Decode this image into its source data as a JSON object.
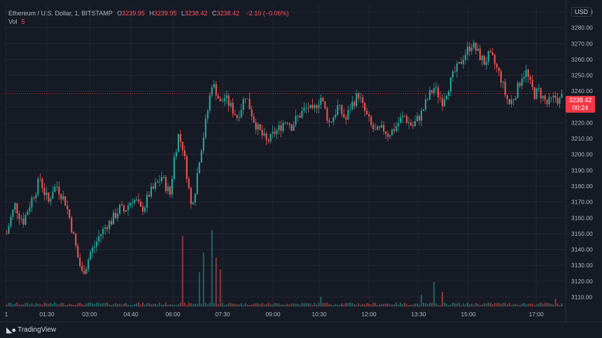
{
  "legend": {
    "symbol": "Ethereum / U.S. Dollar, 1, BITSTAMP",
    "open_label": "O",
    "open": "3239.95",
    "high_label": "H",
    "high": "3239.95",
    "low_label": "L",
    "low": "3238.42",
    "close_label": "C",
    "close": "3238.42",
    "change": "−2.10 (−0.06%)",
    "vol_label": "Vol",
    "vol_value": "5"
  },
  "currency": "USD",
  "price_tag": {
    "price": "3238.42",
    "countdown": "00:24"
  },
  "brand": {
    "name": "TradingView",
    "logo_icon": "tradingview-logo-icon"
  },
  "colors": {
    "background": "#161a25",
    "grid": "#232734",
    "up": "#26a69a",
    "down": "#ef5350",
    "axis_text": "#b2b5be",
    "price_line": "#f23645"
  },
  "chart_data": {
    "type": "candlestick",
    "y_ticks": [
      3110,
      3120,
      3130,
      3140,
      3150,
      3160,
      3170,
      3180,
      3190,
      3200,
      3210,
      3220,
      3230,
      3240,
      3250,
      3260,
      3270,
      3280,
      3290
    ],
    "x_ticks": [
      "1",
      "01:30",
      "03:00",
      "04:40",
      "06:00",
      "07:30",
      "09:00",
      "10:30",
      "12:00",
      "13:30",
      "15:00",
      "17:00"
    ],
    "ylim": [
      3104,
      3294
    ],
    "current_price": 3238.42,
    "grid": true,
    "close_path": [
      [
        0,
        3150
      ],
      [
        2,
        3160
      ],
      [
        4,
        3168
      ],
      [
        6,
        3162
      ],
      [
        8,
        3158
      ],
      [
        10,
        3165
      ],
      [
        12,
        3172
      ],
      [
        14,
        3178
      ],
      [
        16,
        3185
      ],
      [
        18,
        3176
      ],
      [
        20,
        3170
      ],
      [
        22,
        3178
      ],
      [
        24,
        3180
      ],
      [
        26,
        3175
      ],
      [
        28,
        3170
      ],
      [
        30,
        3160
      ],
      [
        32,
        3148
      ],
      [
        34,
        3135
      ],
      [
        36,
        3125
      ],
      [
        38,
        3130
      ],
      [
        40,
        3138
      ],
      [
        42,
        3142
      ],
      [
        44,
        3148
      ],
      [
        46,
        3152
      ],
      [
        48,
        3156
      ],
      [
        50,
        3158
      ],
      [
        52,
        3162
      ],
      [
        54,
        3166
      ],
      [
        56,
        3164
      ],
      [
        58,
        3168
      ],
      [
        60,
        3172
      ],
      [
        62,
        3170
      ],
      [
        64,
        3165
      ],
      [
        66,
        3168
      ],
      [
        68,
        3175
      ],
      [
        70,
        3178
      ],
      [
        72,
        3182
      ],
      [
        74,
        3186
      ],
      [
        76,
        3180
      ],
      [
        78,
        3175
      ],
      [
        80,
        3198
      ],
      [
        82,
        3212
      ],
      [
        84,
        3205
      ],
      [
        86,
        3188
      ],
      [
        88,
        3168
      ],
      [
        90,
        3178
      ],
      [
        92,
        3198
      ],
      [
        94,
        3212
      ],
      [
        96,
        3228
      ],
      [
        98,
        3245
      ],
      [
        100,
        3240
      ],
      [
        102,
        3232
      ],
      [
        104,
        3236
      ],
      [
        106,
        3232
      ],
      [
        108,
        3228
      ],
      [
        110,
        3224
      ],
      [
        112,
        3230
      ],
      [
        114,
        3238
      ],
      [
        116,
        3230
      ],
      [
        118,
        3222
      ],
      [
        120,
        3216
      ],
      [
        122,
        3212
      ],
      [
        124,
        3208
      ],
      [
        126,
        3210
      ],
      [
        128,
        3214
      ],
      [
        130,
        3216
      ],
      [
        132,
        3220
      ],
      [
        134,
        3222
      ],
      [
        136,
        3218
      ],
      [
        138,
        3222
      ],
      [
        140,
        3225
      ],
      [
        142,
        3228
      ],
      [
        144,
        3230
      ],
      [
        146,
        3226
      ],
      [
        148,
        3232
      ],
      [
        150,
        3236
      ],
      [
        152,
        3228
      ],
      [
        154,
        3220
      ],
      [
        156,
        3224
      ],
      [
        158,
        3230
      ],
      [
        160,
        3226
      ],
      [
        162,
        3222
      ],
      [
        164,
        3230
      ],
      [
        166,
        3234
      ],
      [
        168,
        3238
      ],
      [
        170,
        3230
      ],
      [
        172,
        3224
      ],
      [
        174,
        3218
      ],
      [
        176,
        3214
      ],
      [
        178,
        3215
      ],
      [
        180,
        3216
      ],
      [
        182,
        3213
      ],
      [
        184,
        3215
      ],
      [
        186,
        3218
      ],
      [
        188,
        3222
      ],
      [
        190,
        3224
      ],
      [
        192,
        3220
      ],
      [
        194,
        3218
      ],
      [
        196,
        3222
      ],
      [
        198,
        3226
      ],
      [
        200,
        3232
      ],
      [
        202,
        3238
      ],
      [
        204,
        3242
      ],
      [
        206,
        3238
      ],
      [
        208,
        3234
      ],
      [
        210,
        3240
      ],
      [
        212,
        3246
      ],
      [
        214,
        3252
      ],
      [
        216,
        3256
      ],
      [
        218,
        3262
      ],
      [
        220,
        3266
      ],
      [
        222,
        3270
      ],
      [
        224,
        3266
      ],
      [
        226,
        3262
      ],
      [
        228,
        3258
      ],
      [
        230,
        3262
      ],
      [
        232,
        3260
      ],
      [
        234,
        3254
      ],
      [
        236,
        3248
      ],
      [
        238,
        3238
      ],
      [
        240,
        3232
      ],
      [
        242,
        3236
      ],
      [
        244,
        3242
      ],
      [
        246,
        3250
      ],
      [
        248,
        3252
      ],
      [
        250,
        3244
      ],
      [
        252,
        3238
      ],
      [
        254,
        3240
      ],
      [
        256,
        3236
      ],
      [
        258,
        3232
      ],
      [
        260,
        3234
      ],
      [
        262,
        3236
      ],
      [
        264,
        3234
      ],
      [
        266,
        3238
      ]
    ],
    "volume_spikes": [
      [
        84,
        0.72
      ],
      [
        92,
        0.35
      ],
      [
        94,
        0.55
      ],
      [
        98,
        0.78
      ],
      [
        100,
        0.5
      ],
      [
        102,
        0.38
      ],
      [
        150,
        0.1
      ],
      [
        198,
        0.12
      ],
      [
        204,
        0.25
      ],
      [
        208,
        0.15
      ],
      [
        262,
        0.08
      ]
    ]
  }
}
